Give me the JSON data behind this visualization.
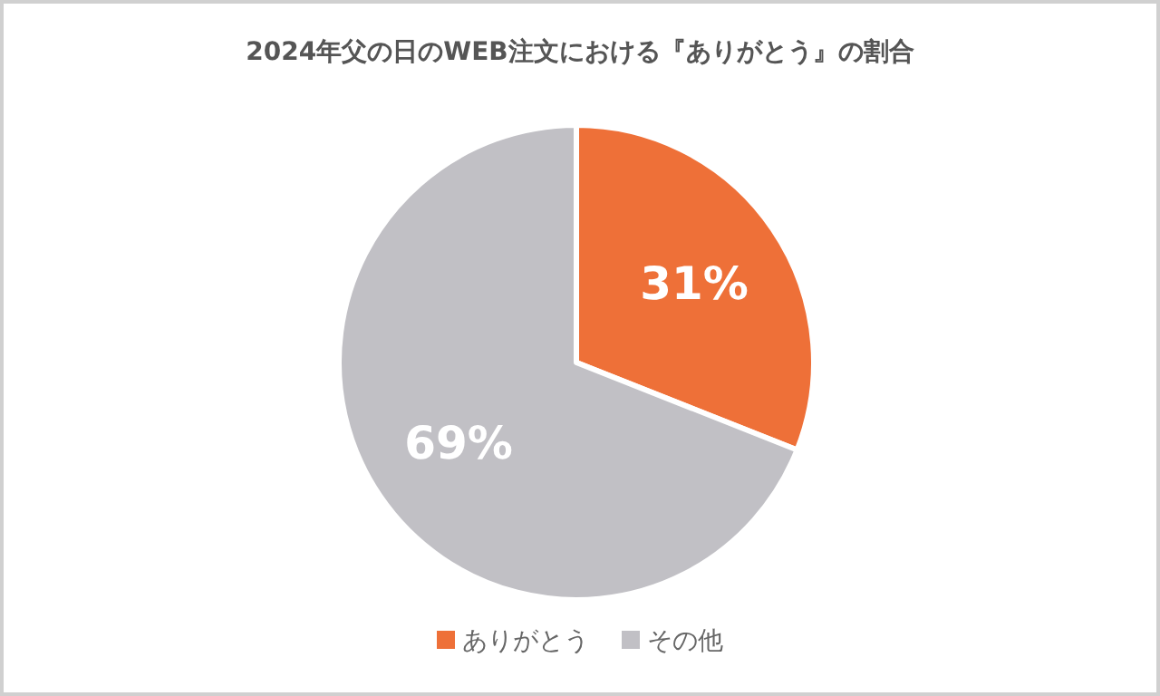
{
  "chart_data": {
    "type": "pie",
    "title": "2024年父の日のWEB注文における『ありがとう』の割合",
    "categories": [
      "ありがとう",
      "その他"
    ],
    "values": [
      31,
      69
    ],
    "colors": [
      "#ee7038",
      "#c1c0c5"
    ],
    "value_labels": [
      "31%",
      "69%"
    ],
    "legend": "bottom"
  }
}
